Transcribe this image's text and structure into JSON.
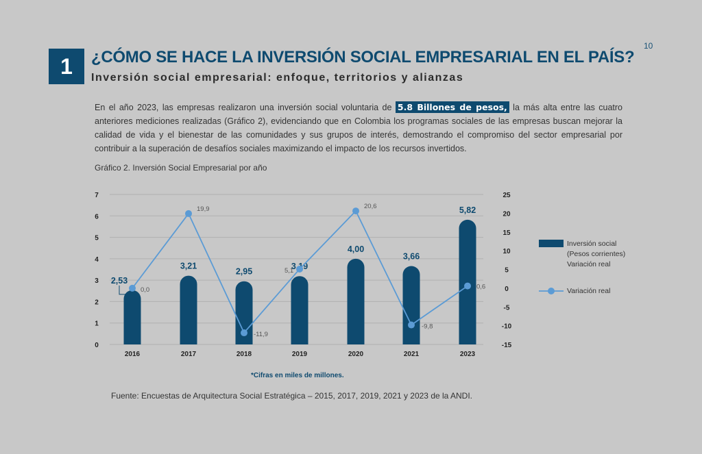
{
  "page_number": "10",
  "section_number": "1",
  "title": "¿CÓMO SE HACE LA INVERSIÓN SOCIAL EMPRESARIAL EN EL PAÍS?",
  "subtitle": "Inversión social empresarial: enfoque, territorios y alianzas",
  "paragraph": {
    "before": "En el año 2023, las empresas realizaron una inversión social voluntaria de ",
    "highlight": "5.8 Billones de pesos,",
    "after": " la más alta entre las cuatro anteriores mediciones realizadas (Gráfico 2), evidenciando que en Colombia los programas sociales de las empresas buscan mejorar la calidad de vida y el bienestar de las comunidades y sus grupos de interés, demostrando el compromiso del sector empresarial por contribuir a la superación de desafíos sociales maximizando el impacto de los recursos invertidos."
  },
  "chart_caption": "Gráfico 2. Inversión Social Empresarial por año",
  "note": "*Cifras en miles de millones.",
  "source": "Fuente: Encuestas de Arquitectura Social Estratégica – 2015, 2017, 2019, 2021 y 2023 de la ANDI.",
  "colors": {
    "bar": "#0e4a6f",
    "line": "#5b9bd5",
    "accent": "#0e4a6f"
  },
  "chart_data": {
    "type": "bar",
    "categories": [
      "2016",
      "2017",
      "2018",
      "2019",
      "2020",
      "2021",
      "2023"
    ],
    "y_left": {
      "range": [
        0,
        7
      ],
      "ticks": [
        "0",
        "1",
        "2",
        "3",
        "4",
        "5",
        "6",
        "7"
      ]
    },
    "y_right": {
      "range": [
        -15,
        25
      ],
      "ticks": [
        "-15",
        "-10",
        "-5",
        "0",
        "5",
        "10",
        "15",
        "20",
        "25"
      ]
    },
    "grid": true,
    "legend_position": "right",
    "series": [
      {
        "name": "Inversión social (Pesos corrientes) Variación real",
        "type": "bar",
        "axis": "left",
        "values": [
          2.53,
          3.21,
          2.95,
          3.19,
          4.0,
          3.66,
          5.82
        ],
        "labels": [
          "2,53",
          "3,21",
          "2,95",
          "3,19",
          "4,00",
          "3,66",
          "5,82"
        ]
      },
      {
        "name": "Variación real",
        "type": "line",
        "axis": "right",
        "values": [
          0.0,
          19.9,
          -11.9,
          5.1,
          20.6,
          -9.8,
          0.6
        ],
        "labels": [
          "0,0",
          "19,9",
          "-11,9",
          "5,1",
          "20,6",
          "-9,8",
          "0,6"
        ]
      }
    ],
    "legend": {
      "bar_lines": [
        "Inversión social",
        "(Pesos corrientes)",
        "Variación real"
      ],
      "line_label": "Variación real"
    }
  }
}
